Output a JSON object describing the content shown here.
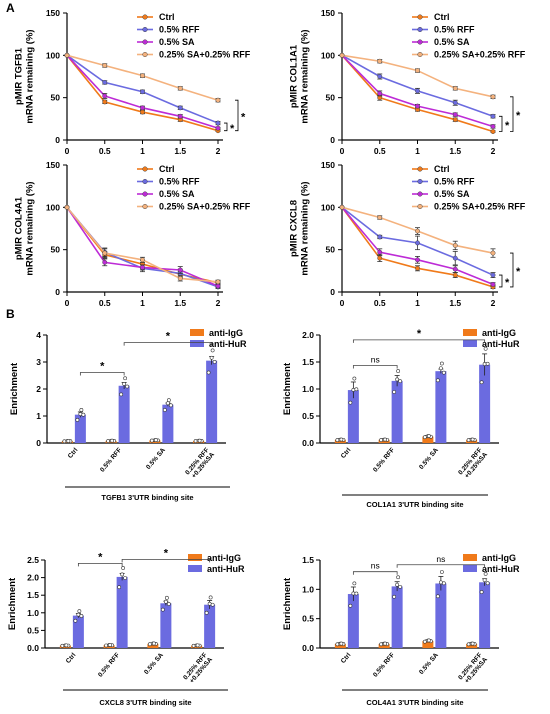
{
  "figure": {
    "label_a": "A",
    "label_b": "B"
  },
  "chart_data": [
    {
      "type": "line",
      "ylabel": "pMIR TGFB1\nmRNA remaining (%)",
      "x": [
        0,
        0.5,
        1,
        1.5,
        2
      ],
      "x_ticks": [
        "0",
        "0.5",
        "1",
        "1.5",
        "2"
      ],
      "y_ticks": [
        "0",
        "50",
        "100",
        "150"
      ],
      "ylim": [
        0,
        150
      ],
      "legend_position": "top-right",
      "series": [
        {
          "name": "Ctrl",
          "color": "#F07A1A",
          "values": [
            100,
            45,
            33,
            24,
            11
          ],
          "errors": [
            0,
            2,
            2,
            2,
            1
          ]
        },
        {
          "name": "0.5% RFF",
          "color": "#6B6BE0",
          "values": [
            100,
            68,
            57,
            38,
            20
          ],
          "errors": [
            0,
            2,
            2,
            2,
            2
          ]
        },
        {
          "name": "0.5% SA",
          "color": "#BD2BD6",
          "values": [
            100,
            52,
            38,
            28,
            14
          ],
          "errors": [
            0,
            3,
            2,
            2,
            1
          ]
        },
        {
          "name": "0.25% SA+0.25% RFF",
          "color": "#F4B27E",
          "values": [
            100,
            88,
            76,
            61,
            47
          ],
          "errors": [
            0,
            2,
            2,
            2,
            2
          ]
        }
      ],
      "significance": [
        "*",
        "*"
      ]
    },
    {
      "type": "line",
      "ylabel": "pMIR COL1A1\nmRNA remaining (%)",
      "x": [
        0,
        0.5,
        1,
        1.5,
        2
      ],
      "x_ticks": [
        "0",
        "0.5",
        "1",
        "1.5",
        "2"
      ],
      "y_ticks": [
        "0",
        "50",
        "100",
        "150"
      ],
      "ylim": [
        0,
        150
      ],
      "legend_position": "top-right",
      "series": [
        {
          "name": "Ctrl",
          "color": "#F07A1A",
          "values": [
            100,
            50,
            36,
            24,
            10
          ],
          "errors": [
            0,
            3,
            2,
            2,
            1
          ]
        },
        {
          "name": "0.5% RFF",
          "color": "#6B6BE0",
          "values": [
            100,
            75,
            58,
            44,
            28
          ],
          "errors": [
            0,
            3,
            3,
            3,
            2
          ]
        },
        {
          "name": "0.5% SA",
          "color": "#BD2BD6",
          "values": [
            100,
            55,
            40,
            30,
            16
          ],
          "errors": [
            0,
            3,
            2,
            2,
            2
          ]
        },
        {
          "name": "0.25% SA+0.25% RFF",
          "color": "#F4B27E",
          "values": [
            100,
            93,
            82,
            61,
            51
          ],
          "errors": [
            0,
            2,
            2,
            2,
            2
          ]
        }
      ],
      "significance": [
        "*",
        "*"
      ]
    },
    {
      "type": "line",
      "ylabel": "pMIR COL4A1\nmRNA remaining (%)",
      "x": [
        0,
        0.5,
        1,
        1.5,
        2
      ],
      "x_ticks": [
        "0",
        "0.5",
        "1",
        "1.5",
        "2"
      ],
      "y_ticks": [
        "0",
        "50",
        "100",
        "150"
      ],
      "ylim": [
        0,
        150
      ],
      "legend_position": "top-right",
      "series": [
        {
          "name": "Ctrl",
          "color": "#F07A1A",
          "values": [
            100,
            44,
            33,
            21,
            11
          ],
          "errors": [
            0,
            4,
            4,
            3,
            2
          ]
        },
        {
          "name": "0.5% RFF",
          "color": "#6B6BE0",
          "values": [
            100,
            47,
            28,
            22,
            6
          ],
          "errors": [
            0,
            5,
            4,
            5,
            2
          ]
        },
        {
          "name": "0.5% SA",
          "color": "#BD2BD6",
          "values": [
            100,
            35,
            29,
            26,
            7
          ],
          "errors": [
            0,
            4,
            3,
            4,
            2
          ]
        },
        {
          "name": "0.25% SA+0.25% RFF",
          "color": "#F4B27E",
          "values": [
            100,
            46,
            38,
            16,
            12
          ],
          "errors": [
            0,
            5,
            3,
            3,
            2
          ]
        }
      ]
    },
    {
      "type": "line",
      "ylabel": "pMIR CXCL8\nmRNA remaining (%)",
      "x": [
        0,
        0.5,
        1,
        1.5,
        2
      ],
      "x_ticks": [
        "0",
        "0.5",
        "1",
        "1.5",
        "2"
      ],
      "y_ticks": [
        "0",
        "50",
        "100",
        "150"
      ],
      "ylim": [
        0,
        150
      ],
      "legend_position": "top-right",
      "series": [
        {
          "name": "Ctrl",
          "color": "#F07A1A",
          "values": [
            100,
            40,
            28,
            20,
            6
          ],
          "errors": [
            0,
            4,
            3,
            3,
            2
          ]
        },
        {
          "name": "0.5% RFF",
          "color": "#6B6BE0",
          "values": [
            100,
            65,
            58,
            40,
            20
          ],
          "errors": [
            0,
            2,
            8,
            8,
            3
          ]
        },
        {
          "name": "0.5% SA",
          "color": "#BD2BD6",
          "values": [
            100,
            47,
            38,
            27,
            9
          ],
          "errors": [
            0,
            4,
            4,
            4,
            2
          ]
        },
        {
          "name": "0.25% SA+0.25% RFF",
          "color": "#F4B27E",
          "values": [
            100,
            88,
            72,
            55,
            46
          ],
          "errors": [
            0,
            2,
            4,
            5,
            5
          ]
        }
      ],
      "significance": [
        "*",
        "*"
      ]
    },
    {
      "type": "bar",
      "ylabel": "Enrichment",
      "xlabel": "TGFB1 3'UTR binding site",
      "categories": [
        "Ctrl",
        "0.5% RFF",
        "0.5% SA",
        "0.25% RFF\n+0.25%SA"
      ],
      "y_ticks": [
        "0",
        "1",
        "2",
        "3",
        "4"
      ],
      "ylim": [
        0,
        4
      ],
      "legend_position": "top-right",
      "series": [
        {
          "name": "anti-IgG",
          "color": "#F07A1A",
          "values": [
            0.07,
            0.08,
            0.1,
            0.08
          ],
          "errors": [
            0.02,
            0.02,
            0.02,
            0.02
          ]
        },
        {
          "name": "anti-HuR",
          "color": "#6B6BE0",
          "values": [
            1.05,
            2.12,
            1.42,
            3.05
          ],
          "errors": [
            0.1,
            0.12,
            0.06,
            0.15
          ]
        }
      ],
      "comparisons": [
        {
          "from": 0,
          "to": 1,
          "label": "*"
        },
        {
          "from": 1,
          "to": 3,
          "label": "*"
        }
      ]
    },
    {
      "type": "bar",
      "ylabel": "Enrichment",
      "xlabel": "COL1A1 3'UTR binding site",
      "categories": [
        "Ctrl",
        "0.5% RFF",
        "0.5% SA",
        "0.25% RFF\n+0.25%SA"
      ],
      "y_ticks": [
        "0.0",
        "0.5",
        "1.0",
        "1.5",
        "2.0"
      ],
      "ylim": [
        0,
        2
      ],
      "legend_position": "top-right",
      "series": [
        {
          "name": "anti-IgG",
          "color": "#F07A1A",
          "values": [
            0.06,
            0.06,
            0.12,
            0.06
          ],
          "errors": [
            0.02,
            0.02,
            0.02,
            0.02
          ]
        },
        {
          "name": "anti-HuR",
          "color": "#6B6BE0",
          "values": [
            0.98,
            1.15,
            1.33,
            1.45
          ],
          "errors": [
            0.15,
            0.1,
            0.04,
            0.2
          ]
        }
      ],
      "comparisons": [
        {
          "from": 0,
          "to": 1,
          "label": "ns"
        },
        {
          "from": 0,
          "to": 3,
          "label": "*"
        }
      ]
    },
    {
      "type": "bar",
      "ylabel": "Enrichment",
      "xlabel": "CXCL8 3'UTR binding site",
      "categories": [
        "Ctrl",
        "0.5% RFF",
        "0.5% SA",
        "0.25% RFF\n+0.25%SA"
      ],
      "y_ticks": [
        "0.0",
        "0.5",
        "1.0",
        "1.5",
        "2.0",
        "2.5"
      ],
      "ylim": [
        0,
        2.5
      ],
      "legend_position": "top-right",
      "series": [
        {
          "name": "anti-IgG",
          "color": "#F07A1A",
          "values": [
            0.07,
            0.08,
            0.12,
            0.07
          ],
          "errors": [
            0.02,
            0.02,
            0.02,
            0.02
          ]
        },
        {
          "name": "anti-HuR",
          "color": "#6B6BE0",
          "values": [
            0.92,
            2.02,
            1.27,
            1.23
          ],
          "errors": [
            0.06,
            0.1,
            0.06,
            0.12
          ]
        }
      ],
      "comparisons": [
        {
          "from": 0,
          "to": 1,
          "label": "*"
        },
        {
          "from": 1,
          "to": 3,
          "label": "*"
        }
      ]
    },
    {
      "type": "bar",
      "ylabel": "Enrichment",
      "xlabel": "COL4A1 3'UTR binding site",
      "categories": [
        "Ctrl",
        "0.5% RFF",
        "0.5% SA",
        "0.25% RFF\n+0.25%SA"
      ],
      "y_ticks": [
        "0.0",
        "0.5",
        "1.0",
        "1.5"
      ],
      "ylim": [
        0,
        1.5
      ],
      "legend_position": "top-right",
      "series": [
        {
          "name": "anti-IgG",
          "color": "#F07A1A",
          "values": [
            0.07,
            0.07,
            0.12,
            0.07
          ],
          "errors": [
            0.02,
            0.02,
            0.02,
            0.02
          ]
        },
        {
          "name": "anti-HuR",
          "color": "#6B6BE0",
          "values": [
            0.92,
            1.05,
            1.1,
            1.12
          ],
          "errors": [
            0.12,
            0.08,
            0.12,
            0.06
          ]
        }
      ],
      "comparisons": [
        {
          "from": 0,
          "to": 1,
          "label": "ns"
        },
        {
          "from": 1,
          "to": 3,
          "label": "ns"
        }
      ]
    }
  ]
}
